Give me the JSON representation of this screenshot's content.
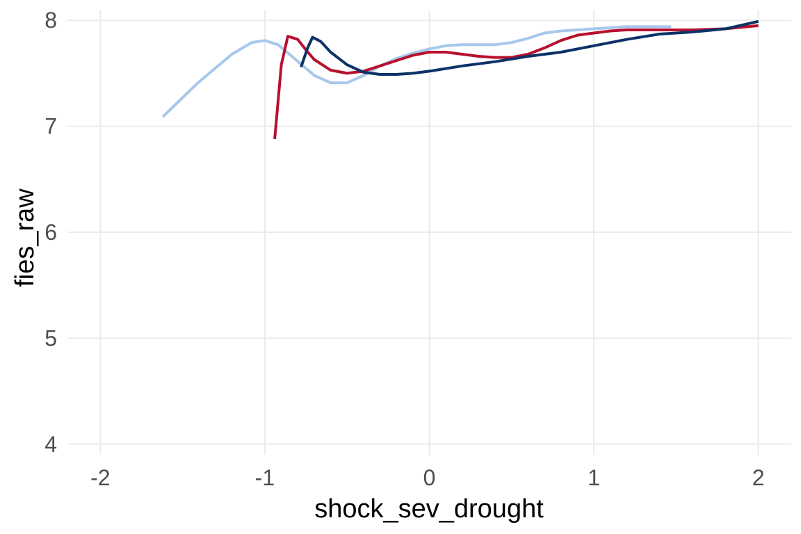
{
  "chart_data": {
    "type": "line",
    "title": "",
    "xlabel": "shock_sev_drought",
    "ylabel": "fies_raw",
    "xlim": [
      -2.2,
      2.2
    ],
    "ylim": [
      3.9,
      8.1
    ],
    "x_ticks": [
      -2,
      -1,
      0,
      1,
      2
    ],
    "x_tick_labels": [
      "-2",
      "-1",
      "0",
      "1",
      "2"
    ],
    "y_ticks": [
      4,
      5,
      6,
      7,
      8
    ],
    "y_tick_labels": [
      "4",
      "5",
      "6",
      "7",
      "8"
    ],
    "grid": true,
    "legend": "none",
    "series": [
      {
        "color": "#a6c8ec",
        "x": [
          -1.62,
          -1.4,
          -1.2,
          -1.08,
          -1.0,
          -0.92,
          -0.82,
          -0.7,
          -0.6,
          -0.5,
          -0.4,
          -0.3,
          -0.2,
          -0.1,
          0.0,
          0.1,
          0.2,
          0.3,
          0.4,
          0.5,
          0.6,
          0.7,
          0.8,
          0.9,
          1.0,
          1.1,
          1.2,
          1.3,
          1.4,
          1.47
        ],
        "y": [
          7.09,
          7.42,
          7.68,
          7.79,
          7.81,
          7.77,
          7.64,
          7.48,
          7.41,
          7.41,
          7.48,
          7.57,
          7.64,
          7.69,
          7.73,
          7.76,
          7.77,
          7.77,
          7.77,
          7.79,
          7.83,
          7.88,
          7.9,
          7.91,
          7.92,
          7.93,
          7.94,
          7.94,
          7.94,
          7.94
        ]
      },
      {
        "color": "#b8102e",
        "x": [
          -0.94,
          -0.9,
          -0.86,
          -0.8,
          -0.75,
          -0.7,
          -0.6,
          -0.5,
          -0.4,
          -0.3,
          -0.2,
          -0.1,
          0.0,
          0.1,
          0.2,
          0.3,
          0.4,
          0.5,
          0.6,
          0.7,
          0.8,
          0.9,
          1.0,
          1.1,
          1.2,
          1.4,
          1.6,
          1.8,
          2.0
        ],
        "y": [
          6.88,
          7.58,
          7.85,
          7.82,
          7.72,
          7.63,
          7.53,
          7.5,
          7.52,
          7.57,
          7.62,
          7.67,
          7.7,
          7.7,
          7.68,
          7.66,
          7.65,
          7.65,
          7.68,
          7.74,
          7.81,
          7.86,
          7.88,
          7.9,
          7.91,
          7.91,
          7.91,
          7.92,
          7.95
        ]
      },
      {
        "color": "#0c3267",
        "x": [
          -0.78,
          -0.74,
          -0.71,
          -0.66,
          -0.6,
          -0.5,
          -0.4,
          -0.3,
          -0.2,
          -0.1,
          0.0,
          0.2,
          0.4,
          0.6,
          0.8,
          1.0,
          1.2,
          1.4,
          1.6,
          1.8,
          2.0
        ],
        "y": [
          7.56,
          7.74,
          7.84,
          7.8,
          7.7,
          7.58,
          7.51,
          7.49,
          7.49,
          7.5,
          7.52,
          7.57,
          7.61,
          7.66,
          7.7,
          7.76,
          7.82,
          7.87,
          7.89,
          7.92,
          7.99
        ]
      }
    ]
  }
}
